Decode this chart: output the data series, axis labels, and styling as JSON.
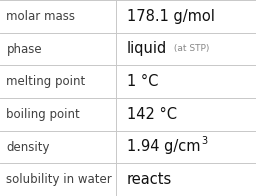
{
  "rows": [
    {
      "label": "molar mass",
      "value": "178.1 g/mol",
      "extra": null,
      "superscript": false
    },
    {
      "label": "phase",
      "value": "liquid",
      "extra": " (at STP)",
      "superscript": false
    },
    {
      "label": "melting point",
      "value": "1 °C",
      "extra": null,
      "superscript": false
    },
    {
      "label": "boiling point",
      "value": "142 °C",
      "extra": null,
      "superscript": false
    },
    {
      "label": "density",
      "value": "1.94 g/cm",
      "extra": "3",
      "superscript": true
    },
    {
      "label": "solubility in water",
      "value": "reacts",
      "extra": null,
      "superscript": false
    }
  ],
  "col_split": 0.455,
  "bg_color": "#ffffff",
  "line_color": "#c8c8c8",
  "label_color": "#404040",
  "value_color": "#111111",
  "extra_color": "#888888",
  "label_fontsize": 8.5,
  "value_fontsize": 10.5,
  "extra_fontsize": 6.5,
  "sup_fontsize": 7.0,
  "figsize": [
    2.56,
    1.96
  ],
  "dpi": 100
}
